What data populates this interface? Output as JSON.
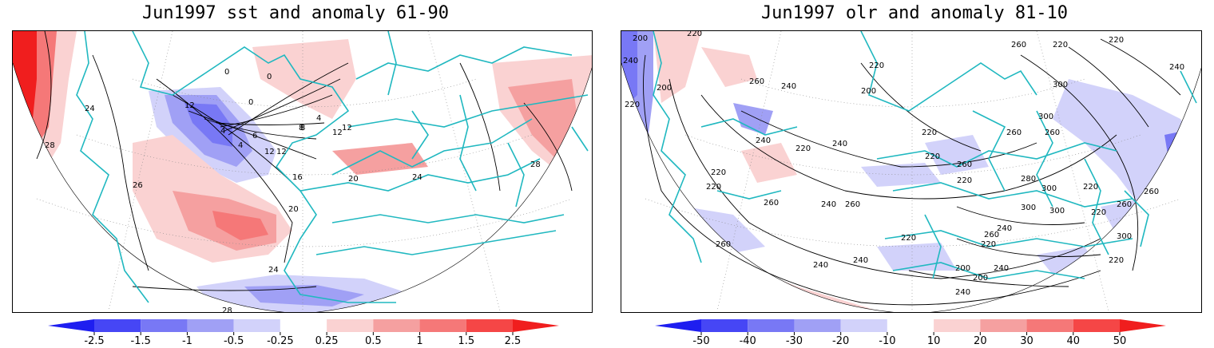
{
  "panels": [
    {
      "title": "Jun1997 sst and anomaly 61-90",
      "colorbar": {
        "labels": [
          "-2.5",
          "-1.5",
          "-1",
          "-0.5",
          "-0.25",
          "0.25",
          "0.5",
          "1",
          "1.5",
          "2.5"
        ],
        "colors": [
          "#1e1ef0",
          "#4646f5",
          "#7878f5",
          "#a0a0f5",
          "#d2d2fa",
          "#ffffff",
          "#fad2d2",
          "#f5a0a0",
          "#f57878",
          "#f54646",
          "#f01e1e"
        ]
      },
      "contour_labels": [
        "28",
        "26",
        "28",
        "24",
        "20",
        "16",
        "12",
        "8",
        "4",
        "0",
        "12",
        "4",
        "6",
        "12",
        "8",
        "12",
        "20",
        "24",
        "28",
        "4",
        "0",
        "0",
        "12",
        "24"
      ]
    },
    {
      "title": "Jun1997 olr and anomaly 81-10",
      "colorbar": {
        "labels": [
          "-50",
          "-40",
          "-30",
          "-20",
          "-10",
          "10",
          "20",
          "30",
          "40",
          "50"
        ],
        "colors": [
          "#1e1ef0",
          "#4646f5",
          "#7878f5",
          "#a0a0f5",
          "#d2d2fa",
          "#ffffff",
          "#fad2d2",
          "#f5a0a0",
          "#f57878",
          "#f54646",
          "#f01e1e"
        ]
      },
      "contour_labels": [
        "200",
        "240",
        "220",
        "220",
        "200",
        "260",
        "240",
        "220",
        "200",
        "220",
        "240",
        "220",
        "260",
        "280",
        "300",
        "260",
        "220",
        "240",
        "260",
        "300",
        "220",
        "200",
        "240",
        "300",
        "220",
        "240",
        "260",
        "260",
        "220",
        "220",
        "240",
        "220",
        "260",
        "300",
        "240",
        "260",
        "260",
        "220",
        "220",
        "200",
        "240",
        "260",
        "300",
        "240",
        "260",
        "220",
        "240",
        "220",
        "300",
        "220"
      ]
    }
  ]
}
